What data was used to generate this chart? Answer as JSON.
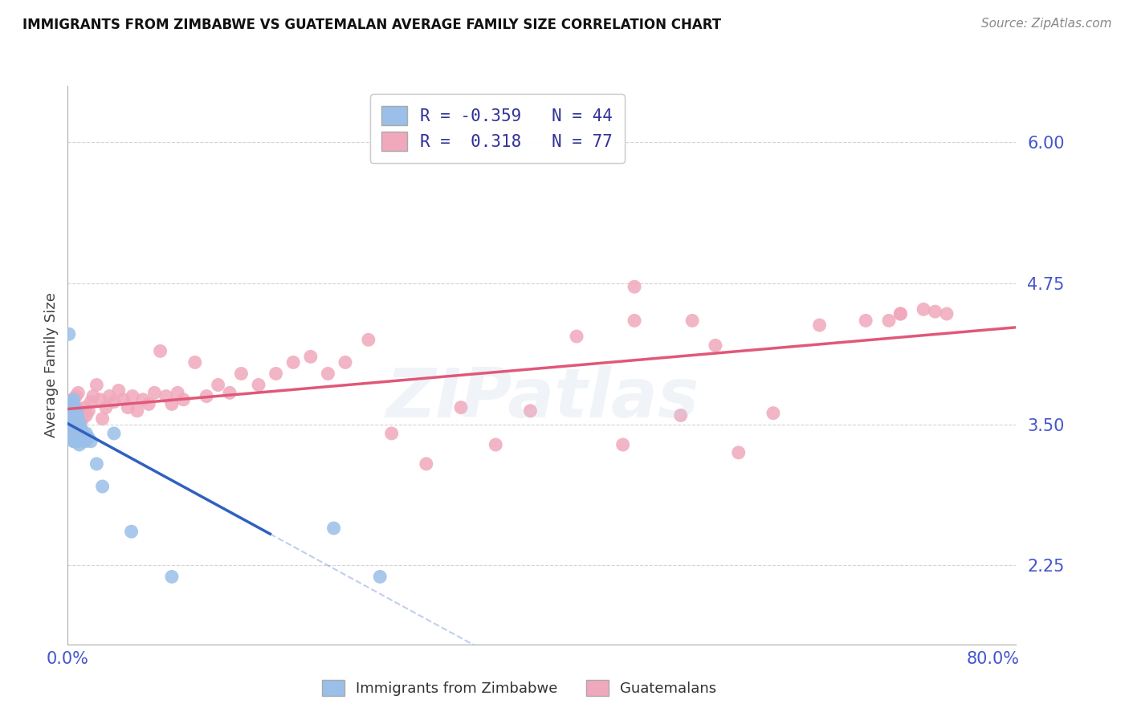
{
  "title": "IMMIGRANTS FROM ZIMBABWE VS GUATEMALAN AVERAGE FAMILY SIZE CORRELATION CHART",
  "source": "Source: ZipAtlas.com",
  "ylabel": "Average Family Size",
  "xlim": [
    0.0,
    0.82
  ],
  "ylim": [
    1.55,
    6.5
  ],
  "yticks": [
    2.25,
    3.5,
    4.75,
    6.0
  ],
  "xtick_positions": [
    0.0,
    0.1,
    0.2,
    0.3,
    0.4,
    0.5,
    0.6,
    0.7,
    0.8
  ],
  "axis_color": "#4455cc",
  "grid_color": "#d0d0d0",
  "background_color": "#ffffff",
  "zimbabwe_color": "#9abfe8",
  "guatemalan_color": "#f0a8bc",
  "zimbabwe_line_color": "#3060c0",
  "guatemalan_line_color": "#e05878",
  "zimbabwe_R": "-0.359",
  "zimbabwe_N": "44",
  "guatemalan_R": "0.318",
  "guatemalan_N": "77",
  "zimbabwe_x": [
    0.001,
    0.002,
    0.002,
    0.003,
    0.003,
    0.003,
    0.004,
    0.004,
    0.005,
    0.005,
    0.005,
    0.005,
    0.006,
    0.006,
    0.006,
    0.006,
    0.007,
    0.007,
    0.007,
    0.007,
    0.008,
    0.008,
    0.008,
    0.009,
    0.009,
    0.009,
    0.01,
    0.01,
    0.01,
    0.011,
    0.012,
    0.013,
    0.014,
    0.015,
    0.016,
    0.018,
    0.02,
    0.025,
    0.03,
    0.04,
    0.055,
    0.09,
    0.23,
    0.27
  ],
  "zimbabwe_y": [
    4.3,
    3.65,
    3.5,
    3.7,
    3.55,
    3.42,
    3.68,
    3.52,
    3.72,
    3.58,
    3.45,
    3.35,
    3.65,
    3.5,
    3.42,
    3.35,
    3.62,
    3.52,
    3.42,
    3.35,
    3.6,
    3.5,
    3.4,
    3.55,
    3.45,
    3.35,
    3.52,
    3.42,
    3.32,
    3.48,
    3.45,
    3.42,
    3.38,
    3.35,
    3.42,
    3.38,
    3.35,
    3.15,
    2.95,
    3.42,
    2.55,
    2.15,
    2.58,
    2.15
  ],
  "guatemalan_x": [
    0.002,
    0.003,
    0.004,
    0.004,
    0.005,
    0.005,
    0.006,
    0.006,
    0.007,
    0.007,
    0.008,
    0.008,
    0.009,
    0.009,
    0.01,
    0.011,
    0.012,
    0.013,
    0.014,
    0.015,
    0.016,
    0.018,
    0.02,
    0.022,
    0.025,
    0.028,
    0.03,
    0.033,
    0.036,
    0.04,
    0.044,
    0.048,
    0.052,
    0.056,
    0.06,
    0.065,
    0.07,
    0.075,
    0.08,
    0.085,
    0.09,
    0.095,
    0.1,
    0.11,
    0.12,
    0.13,
    0.14,
    0.15,
    0.165,
    0.18,
    0.195,
    0.21,
    0.225,
    0.24,
    0.26,
    0.28,
    0.31,
    0.34,
    0.37,
    0.4,
    0.44,
    0.49,
    0.53,
    0.56,
    0.61,
    0.65,
    0.69,
    0.72,
    0.75,
    0.76,
    0.71,
    0.74,
    0.72,
    0.49,
    0.54,
    0.58,
    0.48
  ],
  "guatemalan_y": [
    3.48,
    3.62,
    3.5,
    3.72,
    3.58,
    3.42,
    3.65,
    3.52,
    3.75,
    3.58,
    3.52,
    3.65,
    3.78,
    3.6,
    3.55,
    3.62,
    3.58,
    3.55,
    3.6,
    3.65,
    3.58,
    3.62,
    3.7,
    3.75,
    3.85,
    3.72,
    3.55,
    3.65,
    3.75,
    3.7,
    3.8,
    3.72,
    3.65,
    3.75,
    3.62,
    3.72,
    3.68,
    3.78,
    4.15,
    3.75,
    3.68,
    3.78,
    3.72,
    4.05,
    3.75,
    3.85,
    3.78,
    3.95,
    3.85,
    3.95,
    4.05,
    4.1,
    3.95,
    4.05,
    4.25,
    3.42,
    3.15,
    3.65,
    3.32,
    3.62,
    4.28,
    4.42,
    3.58,
    4.2,
    3.6,
    4.38,
    4.42,
    4.48,
    4.5,
    4.48,
    4.42,
    4.52,
    4.48,
    4.72,
    4.42,
    3.25,
    3.32
  ]
}
